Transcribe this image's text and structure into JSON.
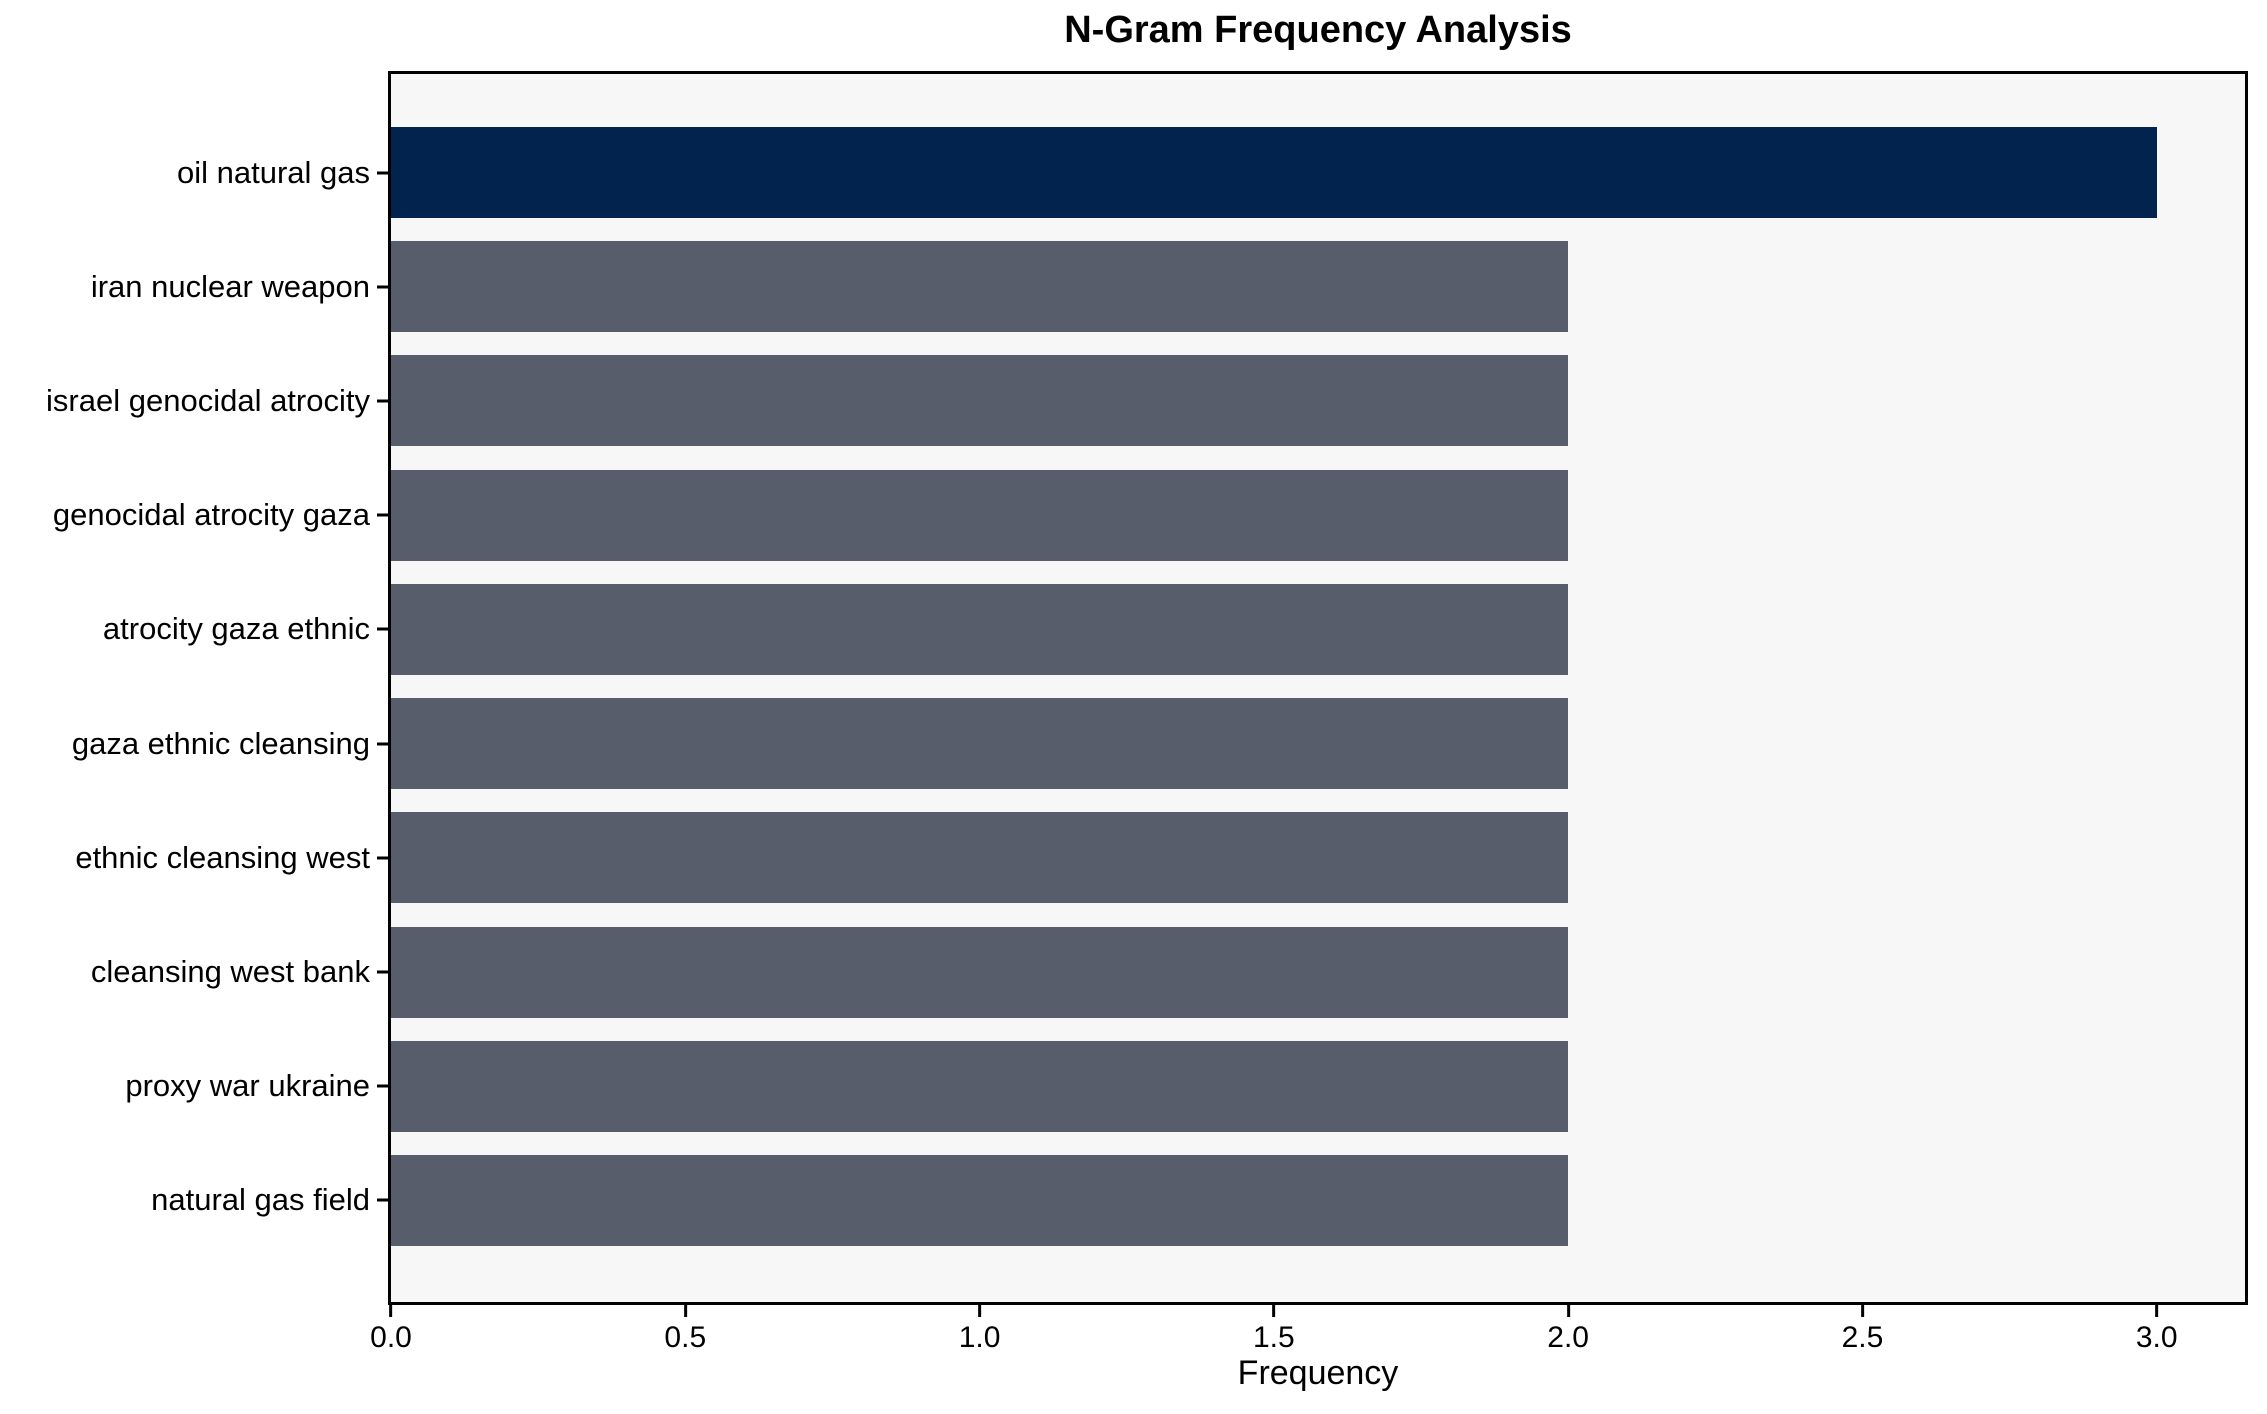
{
  "figure": {
    "title": "N-Gram Frequency Analysis",
    "xlabel": "Frequency"
  },
  "chart_data": {
    "type": "bar",
    "orientation": "horizontal",
    "title": "N-Gram Frequency Analysis",
    "xlabel": "Frequency",
    "ylabel": "",
    "categories": [
      "oil natural gas",
      "iran nuclear weapon",
      "israel genocidal atrocity",
      "genocidal atrocity gaza",
      "atrocity gaza ethnic",
      "gaza ethnic cleansing",
      "ethnic cleansing west",
      "cleansing west bank",
      "proxy war ukraine",
      "natural gas field"
    ],
    "values": [
      3,
      2,
      2,
      2,
      2,
      2,
      2,
      2,
      2,
      2
    ],
    "xlim": [
      0,
      3.15
    ],
    "xticks": [
      "0.0",
      "0.5",
      "1.0",
      "1.5",
      "2.0",
      "2.5",
      "3.0"
    ],
    "xtick_values": [
      0,
      0.5,
      1,
      1.5,
      2,
      2.5,
      3
    ],
    "grid": false,
    "legend": "none",
    "highlight_index": 0,
    "colors": {
      "bar_highlight": "#01234d",
      "bar_default": "#585d6c",
      "plot_bg": "#f7f7f8",
      "figure_bg": "#ffffff",
      "spine": "#000000",
      "text": "#000000"
    }
  }
}
